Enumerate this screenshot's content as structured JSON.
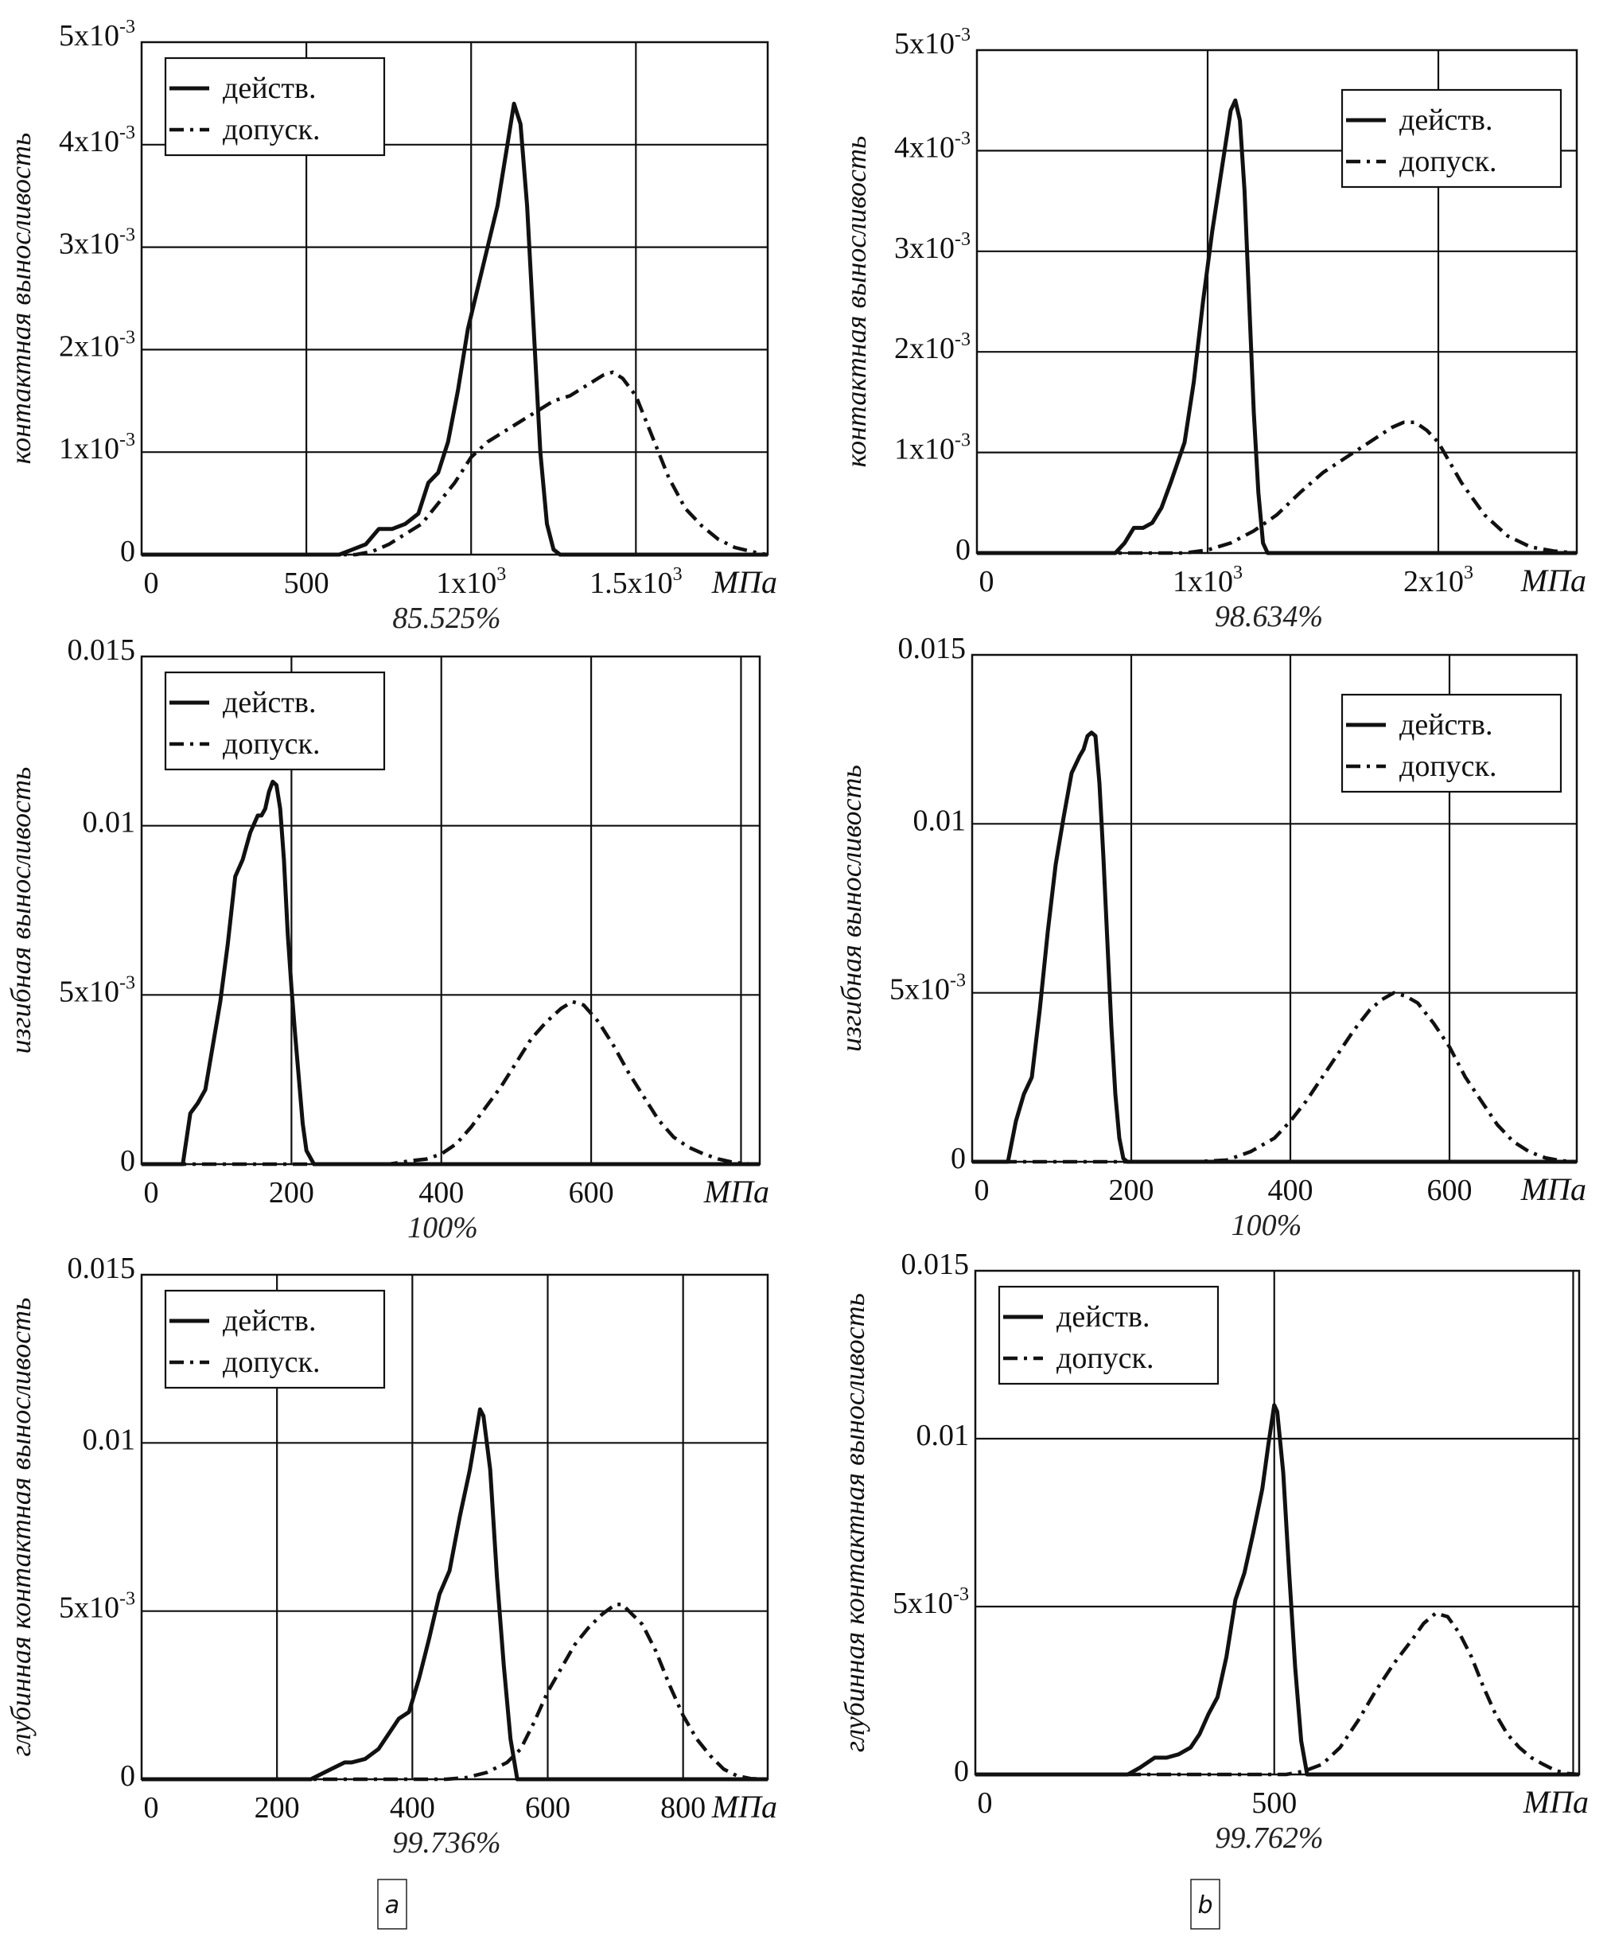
{
  "figure": {
    "panel_labels": [
      "a",
      "b"
    ]
  },
  "chart_data": [
    {
      "type": "line",
      "panel": "a",
      "row": 0,
      "ylabel": "контактная выносливость",
      "xunit": "МПа",
      "footer": "85.525%",
      "xlim": [
        0,
        1900
      ],
      "ylim": [
        0,
        0.005
      ],
      "xticks": [
        {
          "v": 0,
          "t": "0"
        },
        {
          "v": 500,
          "t": "500"
        },
        {
          "v": 1000,
          "t": "1x10",
          "sup": "3"
        },
        {
          "v": 1500,
          "t": "1.5x10",
          "sup": "3"
        }
      ],
      "yticks": [
        {
          "v": 0,
          "t": "0"
        },
        {
          "v": 0.001,
          "t": "1x10",
          "sup": "-3"
        },
        {
          "v": 0.002,
          "t": "2x10",
          "sup": "-3"
        },
        {
          "v": 0.003,
          "t": "3x10",
          "sup": "-3"
        },
        {
          "v": 0.004,
          "t": "4x10",
          "sup": "-3"
        },
        {
          "v": 0.005,
          "t": "5x10",
          "sup": "-3"
        }
      ],
      "xgrid": [
        500,
        1000,
        1500
      ],
      "legend": {
        "position": "top-left",
        "entries": [
          "действ.",
          "допуск."
        ]
      },
      "series": [
        {
          "name": "действ.",
          "style": "solid",
          "x": [
            0,
            600,
            640,
            680,
            720,
            760,
            800,
            840,
            870,
            900,
            930,
            960,
            990,
            1020,
            1050,
            1080,
            1110,
            1130,
            1150,
            1170,
            1190,
            1210,
            1230,
            1250,
            1270,
            1900
          ],
          "y": [
            0,
            0,
            5e-05,
            0.0001,
            0.00025,
            0.00025,
            0.0003,
            0.0004,
            0.0007,
            0.0008,
            0.0011,
            0.0016,
            0.0022,
            0.0026,
            0.003,
            0.0034,
            0.004,
            0.0044,
            0.0042,
            0.0034,
            0.0022,
            0.001,
            0.0003,
            5e-05,
            0,
            0
          ]
        },
        {
          "name": "допуск.",
          "style": "dash-dot",
          "x": [
            0,
            650,
            700,
            750,
            800,
            850,
            900,
            950,
            1000,
            1050,
            1100,
            1150,
            1200,
            1250,
            1300,
            1350,
            1400,
            1430,
            1460,
            1500,
            1550,
            1600,
            1650,
            1700,
            1750,
            1800,
            1850,
            1880,
            1900
          ],
          "y": [
            0,
            0,
            3e-05,
            0.0001,
            0.0002,
            0.0003,
            0.0005,
            0.0007,
            0.00095,
            0.0011,
            0.0012,
            0.0013,
            0.0014,
            0.0015,
            0.00155,
            0.00165,
            0.00175,
            0.00178,
            0.00172,
            0.00155,
            0.00115,
            0.00075,
            0.00045,
            0.00028,
            0.00015,
            7e-05,
            3e-05,
            1e-05,
            0
          ]
        }
      ]
    },
    {
      "type": "line",
      "panel": "b",
      "row": 0,
      "ylabel": "контактная выносливость",
      "xunit": "МПа",
      "footer": "98.634%",
      "xlim": [
        0,
        2600
      ],
      "ylim": [
        0,
        0.005
      ],
      "xticks": [
        {
          "v": 0,
          "t": "0"
        },
        {
          "v": 1000,
          "t": "1x10",
          "sup": "3"
        },
        {
          "v": 2000,
          "t": "2x10",
          "sup": "3"
        }
      ],
      "yticks": [
        {
          "v": 0,
          "t": "0"
        },
        {
          "v": 0.001,
          "t": "1x10",
          "sup": "-3"
        },
        {
          "v": 0.002,
          "t": "2x10",
          "sup": "-3"
        },
        {
          "v": 0.003,
          "t": "3x10",
          "sup": "-3"
        },
        {
          "v": 0.004,
          "t": "4x10",
          "sup": "-3"
        },
        {
          "v": 0.005,
          "t": "5x10",
          "sup": "-3"
        }
      ],
      "xgrid": [
        1000,
        2000
      ],
      "legend": {
        "position": "top-right",
        "entries": [
          "действ.",
          "допуск."
        ]
      },
      "series": [
        {
          "name": "действ.",
          "style": "solid",
          "x": [
            0,
            600,
            640,
            680,
            720,
            760,
            800,
            840,
            870,
            900,
            940,
            980,
            1020,
            1060,
            1100,
            1120,
            1140,
            1160,
            1180,
            1200,
            1220,
            1240,
            1260,
            2600
          ],
          "y": [
            0,
            0,
            0.0001,
            0.00025,
            0.00025,
            0.0003,
            0.00045,
            0.0007,
            0.0009,
            0.0011,
            0.0017,
            0.0025,
            0.0032,
            0.0038,
            0.0044,
            0.0045,
            0.0043,
            0.0036,
            0.0025,
            0.0014,
            0.0006,
            0.0001,
            0,
            0
          ]
        },
        {
          "name": "допуск.",
          "style": "dash-dot",
          "x": [
            0,
            900,
            1000,
            1100,
            1200,
            1300,
            1400,
            1500,
            1600,
            1700,
            1800,
            1850,
            1900,
            1950,
            2000,
            2100,
            2200,
            2300,
            2400,
            2500,
            2600
          ],
          "y": [
            0,
            0,
            3e-05,
            0.0001,
            0.00022,
            0.00038,
            0.0006,
            0.0008,
            0.00095,
            0.0011,
            0.00125,
            0.0013,
            0.0013,
            0.00122,
            0.0011,
            0.0007,
            0.00038,
            0.00017,
            6e-05,
            2e-05,
            0
          ]
        }
      ]
    },
    {
      "type": "line",
      "panel": "a",
      "row": 1,
      "ylabel": "изгибная выносливость",
      "xunit": "МПа",
      "footer": "100%",
      "xlim": [
        0,
        825
      ],
      "ylim": [
        0,
        0.015
      ],
      "xticks": [
        {
          "v": 0,
          "t": "0"
        },
        {
          "v": 200,
          "t": "200"
        },
        {
          "v": 400,
          "t": "400"
        },
        {
          "v": 600,
          "t": "600"
        }
      ],
      "yticks": [
        {
          "v": 0,
          "t": "0"
        },
        {
          "v": 0.005,
          "t": "5x10",
          "sup": "-3"
        },
        {
          "v": 0.01,
          "t": "0.01"
        },
        {
          "v": 0.015,
          "t": "0.015"
        }
      ],
      "xgrid": [
        200,
        400,
        600,
        800
      ],
      "legend": {
        "position": "top-left",
        "entries": [
          "действ.",
          "допуск."
        ]
      },
      "series": [
        {
          "name": "действ.",
          "style": "solid",
          "x": [
            0,
            55,
            65,
            75,
            85,
            95,
            105,
            115,
            125,
            135,
            145,
            155,
            160,
            165,
            170,
            175,
            180,
            185,
            190,
            195,
            200,
            205,
            210,
            215,
            220,
            230,
            825
          ],
          "y": [
            0,
            0,
            0.0015,
            0.0018,
            0.0022,
            0.0035,
            0.0048,
            0.0065,
            0.0085,
            0.009,
            0.0098,
            0.0103,
            0.0103,
            0.0105,
            0.011,
            0.0113,
            0.0112,
            0.0105,
            0.009,
            0.0068,
            0.0052,
            0.0038,
            0.0025,
            0.0012,
            0.0004,
            0,
            0
          ]
        },
        {
          "name": "допуск.",
          "style": "dash-dot",
          "x": [
            0,
            330,
            360,
            380,
            400,
            420,
            440,
            460,
            480,
            500,
            520,
            540,
            560,
            575,
            590,
            610,
            630,
            650,
            670,
            690,
            710,
            730,
            750,
            770,
            790,
            810,
            825
          ],
          "y": [
            0,
            0,
            0.0001,
            0.00015,
            0.0003,
            0.0006,
            0.0011,
            0.0017,
            0.0023,
            0.003,
            0.0037,
            0.0042,
            0.0046,
            0.0048,
            0.0047,
            0.0042,
            0.0035,
            0.0027,
            0.002,
            0.0013,
            0.0008,
            0.0005,
            0.0003,
            0.00015,
            5e-05,
            1e-05,
            0
          ]
        }
      ]
    },
    {
      "type": "line",
      "panel": "b",
      "row": 1,
      "ylabel": "изгибная выносливость",
      "xunit": "МПа",
      "footer": "100%",
      "xlim": [
        0,
        760
      ],
      "ylim": [
        0,
        0.015
      ],
      "xticks": [
        {
          "v": 0,
          "t": "0"
        },
        {
          "v": 200,
          "t": "200"
        },
        {
          "v": 400,
          "t": "400"
        },
        {
          "v": 600,
          "t": "600"
        }
      ],
      "yticks": [
        {
          "v": 0,
          "t": "0"
        },
        {
          "v": 0.005,
          "t": "5x10",
          "sup": "-3"
        },
        {
          "v": 0.01,
          "t": "0.01"
        },
        {
          "v": 0.015,
          "t": "0.015"
        }
      ],
      "xgrid": [
        200,
        400,
        600
      ],
      "legend": {
        "position": "top-right",
        "entries": [
          "действ.",
          "допуск."
        ]
      },
      "series": [
        {
          "name": "действ.",
          "style": "solid",
          "x": [
            0,
            45,
            55,
            65,
            75,
            85,
            95,
            105,
            115,
            125,
            135,
            140,
            145,
            150,
            155,
            160,
            165,
            170,
            175,
            180,
            185,
            190,
            195,
            200,
            760
          ],
          "y": [
            0,
            0,
            0.0012,
            0.002,
            0.0025,
            0.0045,
            0.0068,
            0.0088,
            0.0102,
            0.0115,
            0.012,
            0.0122,
            0.0126,
            0.0127,
            0.0126,
            0.0112,
            0.009,
            0.0065,
            0.004,
            0.002,
            0.0007,
            0.0001,
            0,
            0,
            0
          ]
        },
        {
          "name": "допуск.",
          "style": "dash-dot",
          "x": [
            0,
            280,
            320,
            350,
            380,
            400,
            420,
            440,
            460,
            480,
            500,
            515,
            530,
            545,
            560,
            580,
            600,
            620,
            640,
            660,
            680,
            700,
            720,
            740,
            760
          ],
          "y": [
            0,
            0,
            5e-05,
            0.0003,
            0.0007,
            0.0012,
            0.0018,
            0.0025,
            0.0032,
            0.0039,
            0.0045,
            0.0048,
            0.005,
            0.0049,
            0.0047,
            0.0041,
            0.0034,
            0.0025,
            0.0018,
            0.0011,
            0.0006,
            0.0003,
            0.00012,
            3e-05,
            0
          ]
        }
      ]
    },
    {
      "type": "line",
      "panel": "a",
      "row": 2,
      "ylabel": "глубинная контактная выносливость",
      "xunit": "МПа",
      "footer": "99.736%",
      "xlim": [
        0,
        925
      ],
      "ylim": [
        0,
        0.015
      ],
      "xticks": [
        {
          "v": 0,
          "t": "0"
        },
        {
          "v": 200,
          "t": "200"
        },
        {
          "v": 400,
          "t": "400"
        },
        {
          "v": 600,
          "t": "600"
        },
        {
          "v": 800,
          "t": "800"
        }
      ],
      "yticks": [
        {
          "v": 0,
          "t": "0"
        },
        {
          "v": 0.005,
          "t": "5x10",
          "sup": "-3"
        },
        {
          "v": 0.01,
          "t": "0.01"
        },
        {
          "v": 0.015,
          "t": "0.015"
        }
      ],
      "xgrid": [
        200,
        400,
        600,
        800
      ],
      "legend": {
        "position": "top-left",
        "entries": [
          "действ.",
          "допуск."
        ]
      },
      "series": [
        {
          "name": "действ.",
          "style": "solid",
          "x": [
            0,
            250,
            280,
            300,
            310,
            330,
            350,
            370,
            380,
            395,
            410,
            425,
            440,
            455,
            470,
            485,
            495,
            500,
            505,
            515,
            525,
            535,
            545,
            555,
            925
          ],
          "y": [
            0,
            0,
            0.0003,
            0.0005,
            0.0005,
            0.0006,
            0.0009,
            0.0015,
            0.0018,
            0.002,
            0.003,
            0.0042,
            0.0055,
            0.0062,
            0.0078,
            0.0092,
            0.0104,
            0.011,
            0.0108,
            0.0092,
            0.006,
            0.0034,
            0.0012,
            0,
            0
          ]
        },
        {
          "name": "допуск.",
          "style": "dash-dot",
          "x": [
            0,
            450,
            480,
            510,
            540,
            560,
            580,
            600,
            620,
            640,
            660,
            680,
            700,
            710,
            720,
            740,
            760,
            780,
            800,
            820,
            840,
            860,
            880,
            900,
            925
          ],
          "y": [
            0,
            0,
            5e-05,
            0.0002,
            0.0005,
            0.0009,
            0.0017,
            0.0026,
            0.0033,
            0.004,
            0.0045,
            0.0049,
            0.0052,
            0.0052,
            0.005,
            0.0046,
            0.0038,
            0.0028,
            0.0019,
            0.0012,
            0.0007,
            0.0003,
            0.0001,
            2e-05,
            0
          ]
        }
      ]
    },
    {
      "type": "line",
      "panel": "b",
      "row": 2,
      "ylabel": "глубинная контактная выносливость",
      "xunit": "МПа",
      "footer": "99.762%",
      "xlim": [
        0,
        1010
      ],
      "ylim": [
        0,
        0.015
      ],
      "xticks": [
        {
          "v": 0,
          "t": "0"
        },
        {
          "v": 500,
          "t": "500"
        }
      ],
      "yticks": [
        {
          "v": 0,
          "t": "0"
        },
        {
          "v": 0.005,
          "t": "5x10",
          "sup": "-3"
        },
        {
          "v": 0.01,
          "t": "0.01"
        },
        {
          "v": 0.015,
          "t": "0.015"
        }
      ],
      "xgrid": [
        500,
        1000
      ],
      "legend": {
        "position": "top-left",
        "entries": [
          "действ.",
          "допуск."
        ]
      },
      "series": [
        {
          "name": "действ.",
          "style": "solid",
          "x": [
            0,
            255,
            275,
            300,
            320,
            340,
            360,
            375,
            390,
            405,
            420,
            435,
            450,
            465,
            480,
            490,
            500,
            505,
            515,
            525,
            535,
            545,
            555,
            1010
          ],
          "y": [
            0,
            0,
            0.0002,
            0.0005,
            0.0005,
            0.0006,
            0.0008,
            0.0012,
            0.0018,
            0.0023,
            0.0035,
            0.0052,
            0.006,
            0.0072,
            0.0085,
            0.0098,
            0.011,
            0.0108,
            0.009,
            0.006,
            0.0032,
            0.001,
            0,
            0
          ]
        },
        {
          "name": "допуск.",
          "style": "dash-dot",
          "x": [
            0,
            520,
            550,
            580,
            610,
            640,
            670,
            700,
            730,
            750,
            770,
            790,
            810,
            830,
            850,
            870,
            890,
            910,
            930,
            950,
            970,
            990,
            1010
          ],
          "y": [
            0,
            0,
            0.0001,
            0.0003,
            0.0008,
            0.0016,
            0.0025,
            0.0033,
            0.004,
            0.0045,
            0.0048,
            0.0047,
            0.0042,
            0.0035,
            0.0026,
            0.0018,
            0.0012,
            0.0008,
            0.0005,
            0.0003,
            0.00012,
            3e-05,
            0
          ]
        }
      ]
    }
  ]
}
